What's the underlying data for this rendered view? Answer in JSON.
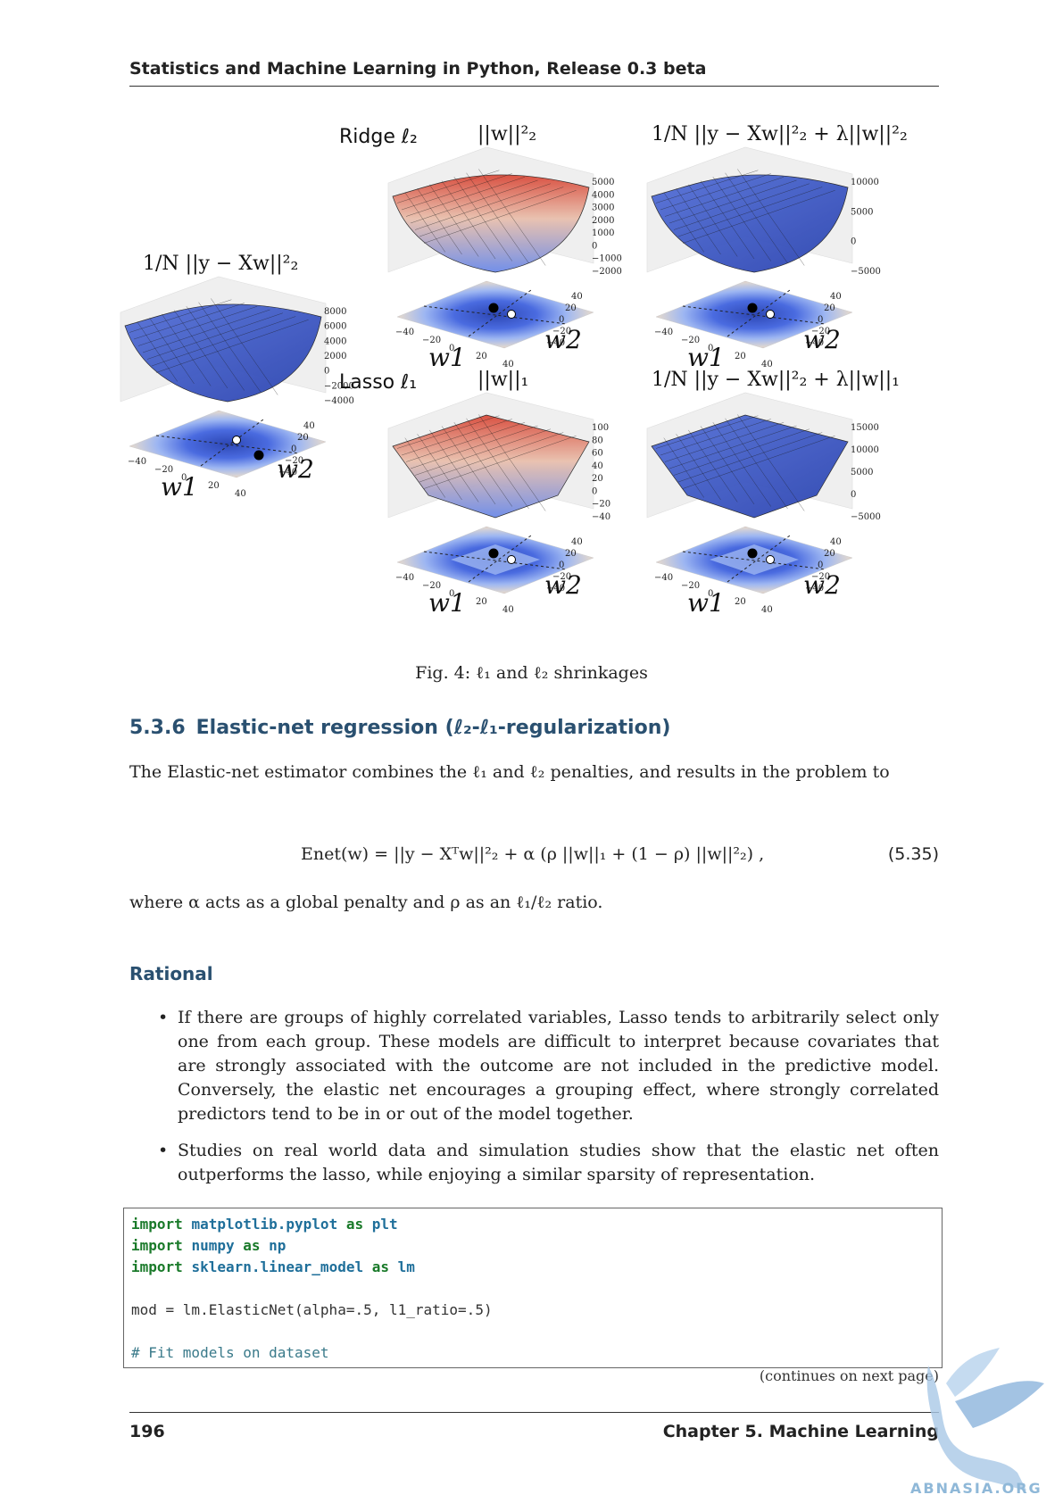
{
  "header": {
    "title": "Statistics and Machine Learning in Python, Release 0.3 beta"
  },
  "figure": {
    "panels": [
      {
        "title": "1/N ||y − Xw||²₂",
        "z_ticks": [
          "8000",
          "6000",
          "4000",
          "2000",
          "0",
          "−2000",
          "−4000"
        ]
      },
      {
        "label": "Ridge ℓ₂",
        "title": "||w||²₂",
        "z_ticks": [
          "5000",
          "4000",
          "3000",
          "2000",
          "1000",
          "0",
          "−1000",
          "−2000"
        ]
      },
      {
        "title": "1/N ||y − Xw||²₂ + λ||w||²₂",
        "z_ticks": [
          "10000",
          "5000",
          "0",
          "−5000"
        ]
      },
      {
        "label": "Lasso ℓ₁",
        "title": "||w||₁",
        "z_ticks": [
          "100",
          "80",
          "60",
          "40",
          "20",
          "0",
          "−20",
          "−40"
        ]
      },
      {
        "title": "1/N ||y − Xw||²₂ + λ||w||₁",
        "z_ticks": [
          "15000",
          "10000",
          "5000",
          "0",
          "−5000"
        ]
      }
    ],
    "w1_ticks": [
      "−40",
      "−20",
      "0",
      "20",
      "40"
    ],
    "w2_ticks": [
      "40",
      "20",
      "0",
      "−20",
      "−40"
    ],
    "w1_label": "w1",
    "w2_label": "w2",
    "caption": "Fig. 4: ℓ₁ and ℓ₂ shrinkages"
  },
  "section": {
    "number": "5.3.6",
    "title": "Elastic-net regression (ℓ₂-ℓ₁-regularization)",
    "intro": "The Elastic-net estimator combines the ℓ₁ and ℓ₂ penalties, and results in the problem to",
    "equation": "Enet(w) = ||y − Xᵀw||²₂ + α (ρ ||w||₁ + (1 − ρ) ||w||²₂) ,",
    "equation_number": "(5.35)",
    "where": "where α acts as a global penalty and ρ as an ℓ₁/ℓ₂ ratio."
  },
  "rational": {
    "heading": "Rational",
    "bullets": [
      "If there are groups of highly correlated variables, Lasso tends to arbitrarily select only one from each group. These models are difficult to interpret because covariates that are strongly associated with the outcome are not included in the predictive model. Conversely, the elastic net encourages a grouping effect, where strongly correlated predictors tend to be in or out of the model together.",
      "Studies on real world data and simulation studies show that the elastic net often outperforms the lasso, while enjoying a similar sparsity of representation."
    ]
  },
  "code": {
    "l1_kw": "import",
    "l1_mod": "matplotlib.pyplot",
    "l1_as": "as",
    "l1_alias": "plt",
    "l2_kw": "import",
    "l2_mod": "numpy",
    "l2_as": "as",
    "l2_alias": "np",
    "l3_kw": "import",
    "l3_mod": "sklearn.linear_model",
    "l3_as": "as",
    "l3_alias": "lm",
    "l5": "mod = lm.ElasticNet(alpha=.5, l1_ratio=.5)",
    "l7": "# Fit models on dataset"
  },
  "continues": "(continues on next page)",
  "footer": {
    "page": "196",
    "chapter": "Chapter 5.  Machine Learning"
  },
  "watermark": "ABNASIA.ORG"
}
